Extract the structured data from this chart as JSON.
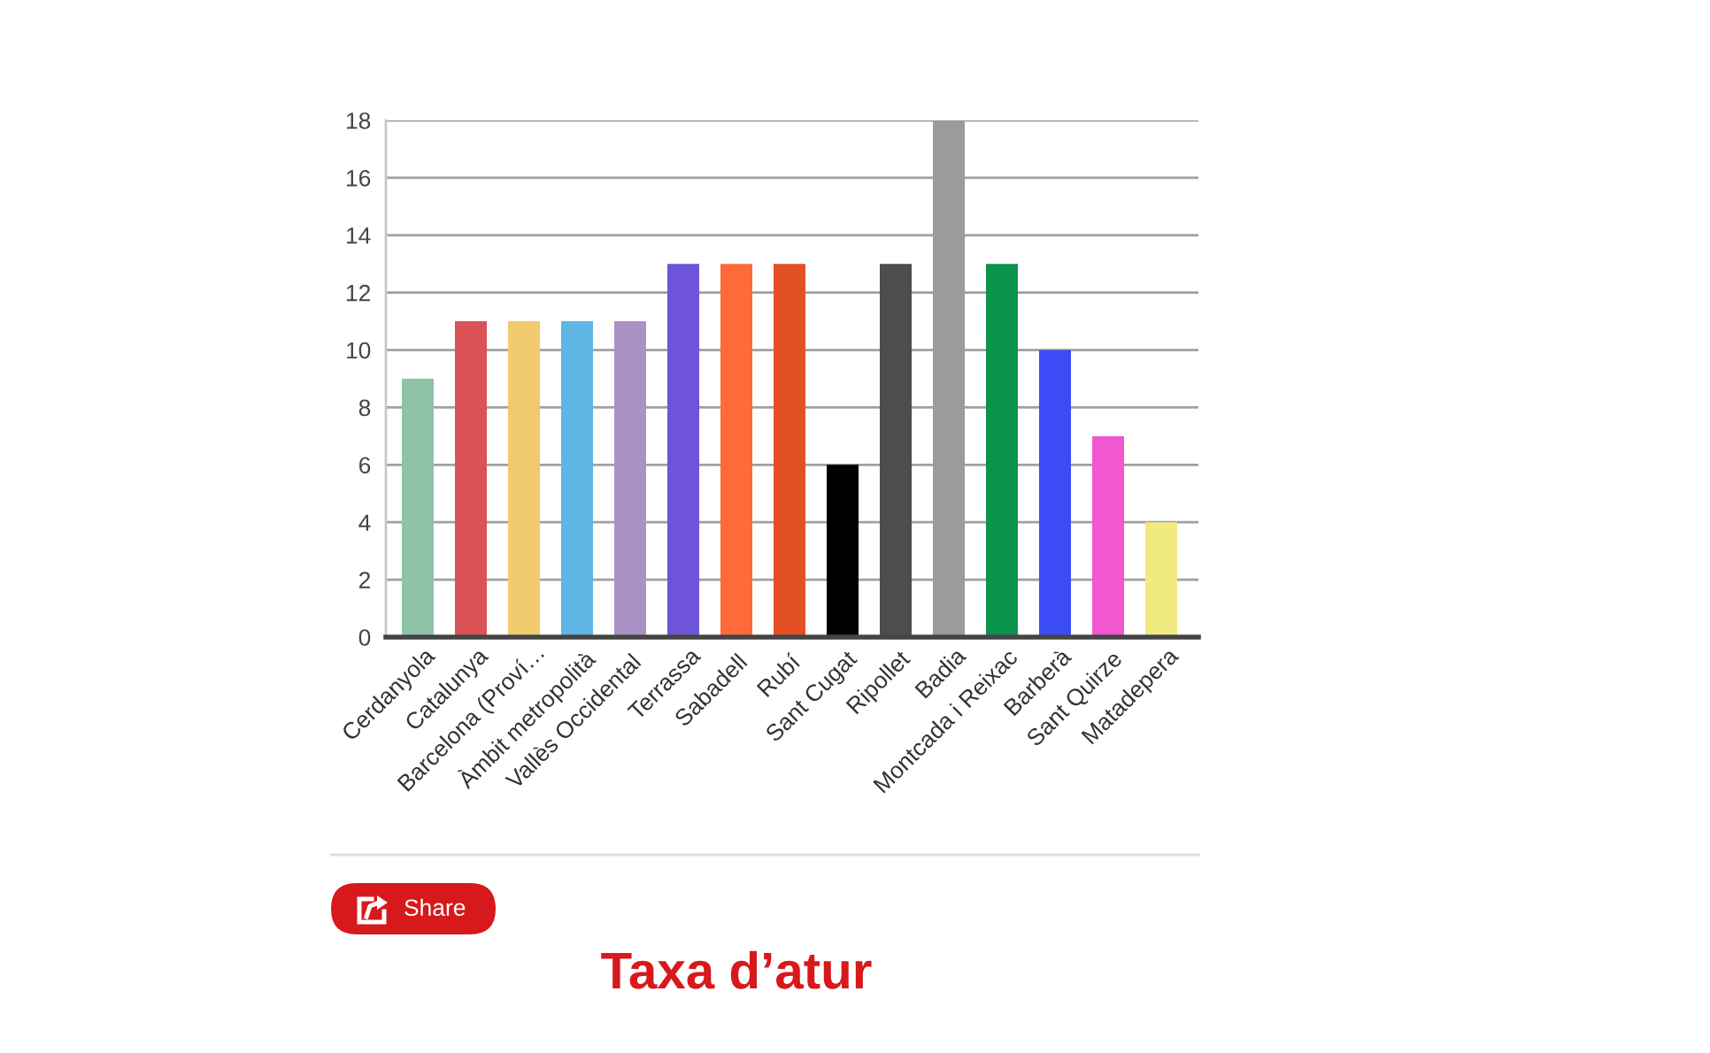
{
  "chart_data": {
    "type": "bar",
    "title": "Taxa d’atur",
    "categories": [
      "Cerdanyola",
      "Catalunya",
      "Barcelona (Proví…",
      "Àmbit metropolità",
      "Vallès Occidental",
      "Terrassa",
      "Sabadell",
      "Rubí",
      "Sant Cugat",
      "Ripollet",
      "Badia",
      "Montcada i Reixac",
      "Barberà",
      "Sant Quirze",
      "Matadepera"
    ],
    "values": [
      9,
      11,
      11,
      11,
      11,
      13,
      13,
      13,
      6,
      13,
      18,
      13,
      10,
      7,
      4
    ],
    "colors": [
      "#8fc3a8",
      "#db5257",
      "#f0ca6c",
      "#5fb5e3",
      "#ac91c6",
      "#6e54d9",
      "#ff6a3a",
      "#e35026",
      "#000000",
      "#4d4d4d",
      "#9b9b9b",
      "#0a934c",
      "#3b4bf5",
      "#f057d1",
      "#f0eb80"
    ],
    "ylim": [
      0,
      18
    ],
    "yticks": [
      0,
      2,
      4,
      6,
      8,
      10,
      12,
      14,
      16,
      18
    ],
    "grid": "y",
    "annotations": [
      "Share"
    ]
  }
}
